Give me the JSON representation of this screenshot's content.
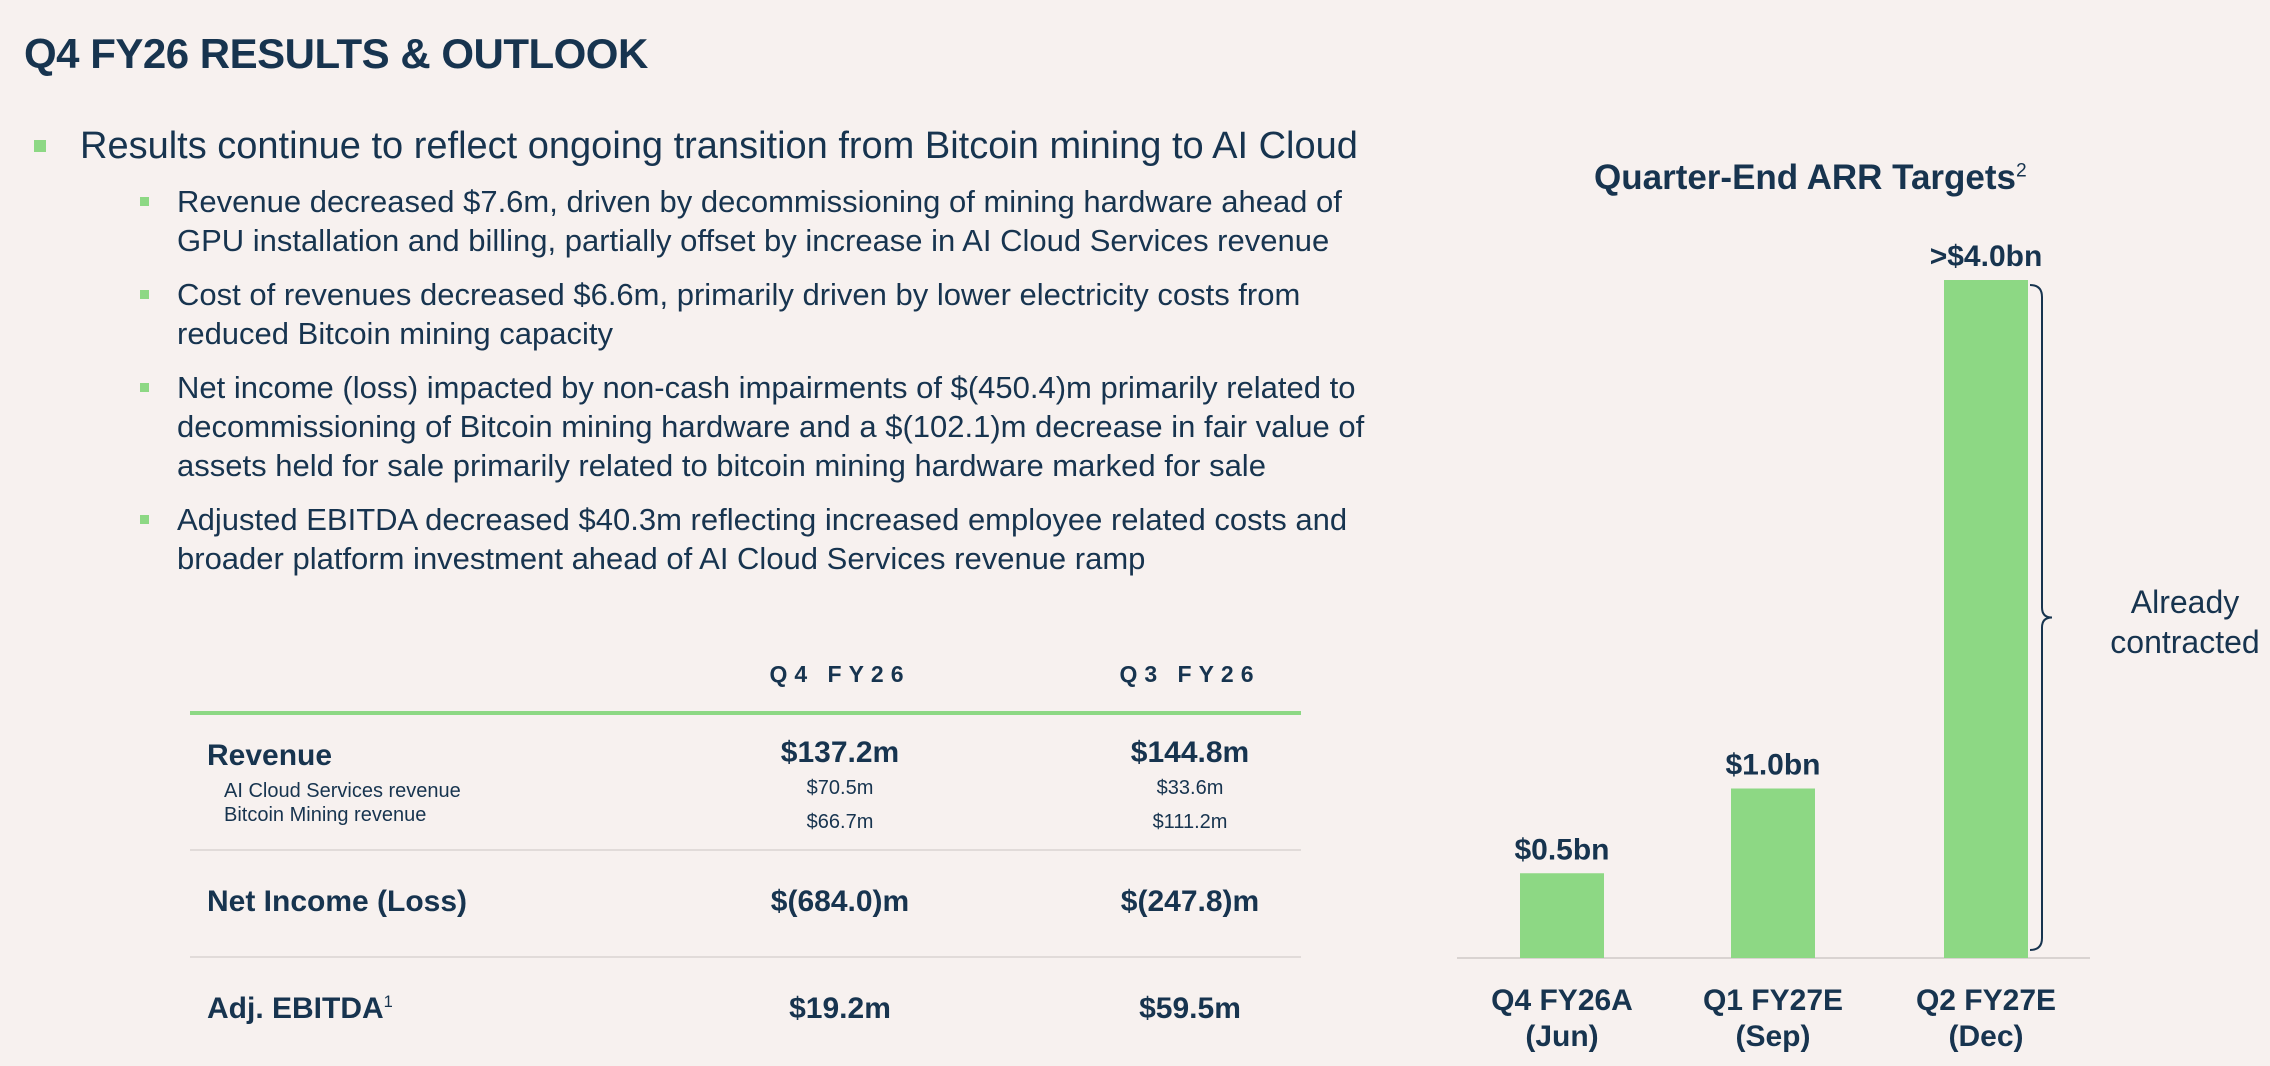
{
  "title": "Q4 FY26 RESULTS & OUTLOOK",
  "bullets": {
    "main": "Results continue to reflect ongoing transition from Bitcoin mining to AI Cloud",
    "subs": [
      "Revenue decreased $7.6m, driven by decommissioning of mining hardware ahead of\nGPU installation and billing, partially offset by increase in AI Cloud Services revenue",
      "Cost of revenues decreased $6.6m, primarily driven by lower electricity costs from\nreduced Bitcoin mining capacity",
      "Net income (loss) impacted by non-cash impairments of $(450.4)m primarily related to\ndecommissioning of Bitcoin mining hardware and a $(102.1)m decrease in fair value of\nassets held for sale primarily related to bitcoin mining hardware marked for sale",
      "Adjusted EBITDA decreased $40.3m reflecting increased employee related costs and\nbroader platform investment ahead of AI Cloud Services revenue ramp"
    ]
  },
  "table": {
    "columns": [
      "Q4 FY26",
      "Q3 FY26"
    ],
    "revenue": {
      "label": "Revenue",
      "values": [
        "$137.2m",
        "$144.8m"
      ],
      "sub_items": [
        {
          "label": "AI Cloud Services revenue",
          "values": [
            "$70.5m",
            "$33.6m"
          ]
        },
        {
          "label": "Bitcoin Mining revenue",
          "values": [
            "$66.7m",
            "$111.2m"
          ]
        }
      ]
    },
    "net_income": {
      "label": "Net Income (Loss)",
      "values": [
        "$(684.0)m",
        "$(247.8)m"
      ]
    },
    "ebitda": {
      "label": "Adj. EBITDA",
      "footnote": "1",
      "values": [
        "$19.2m",
        "$59.5m"
      ]
    }
  },
  "chart_data": {
    "type": "bar",
    "title": "Quarter-End ARR Targets",
    "title_footnote": "2",
    "categories": [
      "Q4 FY26A\n(Jun)",
      "Q1 FY27E\n(Sep)",
      "Q2 FY27E\n(Dec)"
    ],
    "values": [
      0.5,
      1.0,
      4.0
    ],
    "unit": "$bn",
    "data_labels": [
      "$0.5bn",
      "$1.0bn",
      ">$4.0bn"
    ],
    "bar_color": "#8dd884",
    "bracket_annotation": "Already\ncontracted",
    "ylim": [
      0,
      4.0
    ],
    "grid": false
  }
}
